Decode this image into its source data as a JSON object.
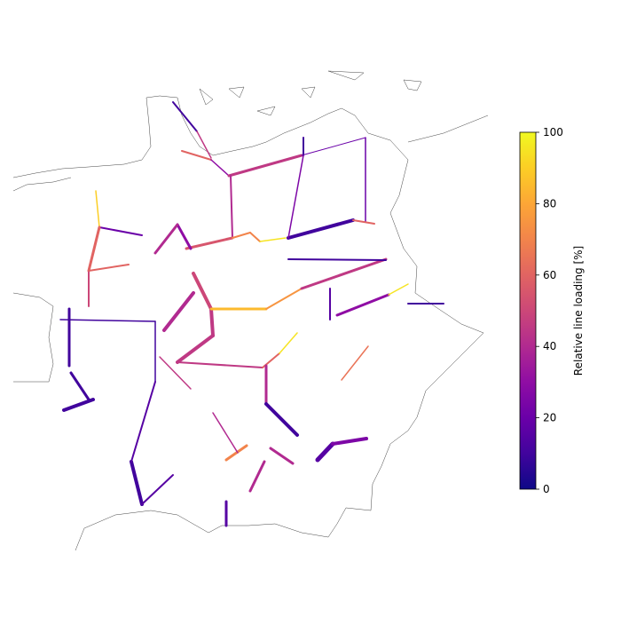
{
  "chart_data": {
    "type": "network-map",
    "lines": {
      "loading": [
        10,
        45,
        60,
        30,
        45,
        20,
        10,
        20,
        40,
        55,
        70,
        70,
        95,
        10,
        60,
        25,
        90,
        20,
        60,
        50,
        60,
        30,
        40,
        50,
        45,
        45,
        40,
        85,
        75,
        45,
        10,
        30,
        95,
        10,
        10,
        10,
        10,
        10,
        10,
        45,
        60,
        95,
        40,
        10,
        15,
        25,
        10,
        15,
        15,
        70,
        40,
        40,
        40,
        15,
        65,
        45,
        15
      ]
    },
    "colorbar": {
      "label": "Relative line loading [%]",
      "lim": [
        0,
        100
      ],
      "ticks": [
        0,
        20,
        40,
        60,
        80,
        100
      ]
    }
  }
}
